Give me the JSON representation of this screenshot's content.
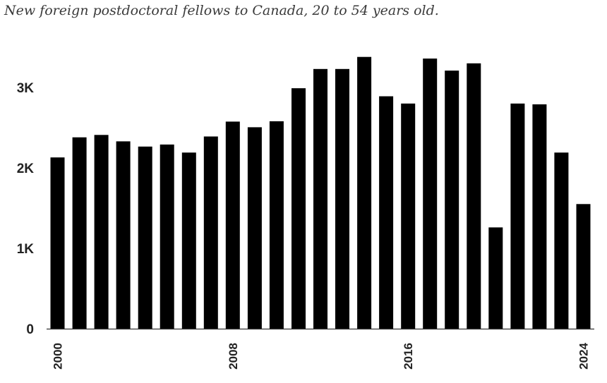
{
  "chart_data": {
    "type": "bar",
    "title": "New foreign postdoctoral fellows to Canada, 20 to 54 years old.",
    "xlabel": "",
    "ylabel": "",
    "categories": [
      "2000",
      "2001",
      "2002",
      "2003",
      "2004",
      "2005",
      "2006",
      "2007",
      "2008",
      "2009",
      "2010",
      "2011",
      "2012",
      "2013",
      "2014",
      "2015",
      "2016",
      "2017",
      "2018",
      "2019",
      "2020",
      "2021",
      "2022",
      "2023",
      "2024"
    ],
    "values": [
      2130,
      2380,
      2410,
      2330,
      2265,
      2290,
      2190,
      2390,
      2575,
      2505,
      2580,
      2990,
      3230,
      3230,
      3380,
      2890,
      2800,
      3360,
      3210,
      3300,
      1260,
      2800,
      2790,
      2190,
      1550
    ],
    "ylim": [
      0,
      3500
    ],
    "yticks": [
      0,
      1000,
      2000,
      3000
    ],
    "ytick_labels": [
      "0",
      "1K",
      "2K",
      "3K"
    ],
    "xtick_labels": [
      "2000",
      "2008",
      "2016",
      "2024"
    ],
    "xtick_categories": [
      "2000",
      "2008",
      "2016",
      "2024"
    ],
    "bar_color": "#000000",
    "grid": false,
    "legend": "none"
  }
}
